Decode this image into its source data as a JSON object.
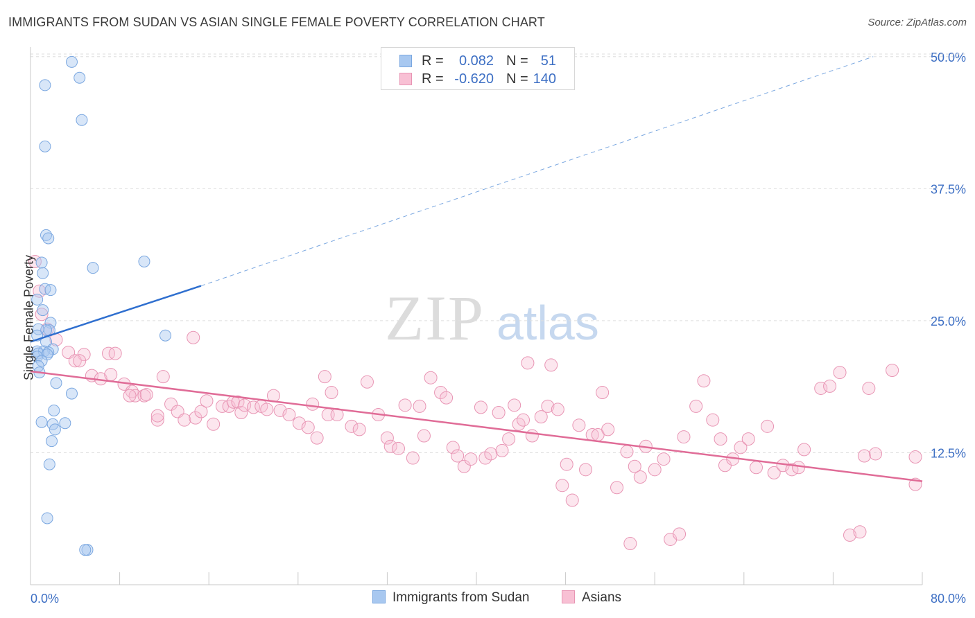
{
  "title": "IMMIGRANTS FROM SUDAN VS ASIAN SINGLE FEMALE POVERTY CORRELATION CHART",
  "source": "Source: ZipAtlas.com",
  "watermark": {
    "zip": "ZIP",
    "atlas": "atlas"
  },
  "legend_top": {
    "rows": [
      {
        "r_label": "R =",
        "r_value": "0.082",
        "n_label": "N =",
        "n_value": "51",
        "color": "#a8c8f0",
        "border": "#7aa7e0"
      },
      {
        "r_label": "R =",
        "r_value": "-0.620",
        "n_label": "N =",
        "n_value": "140",
        "color": "#f8c0d4",
        "border": "#e895b4"
      }
    ]
  },
  "legend_bottom": [
    {
      "label": "Immigrants from Sudan",
      "color": "#a8c8f0",
      "border": "#7aa7e0"
    },
    {
      "label": "Asians",
      "color": "#f8c0d4",
      "border": "#e895b4"
    }
  ],
  "chart_data": {
    "type": "scatter",
    "xlabel": "",
    "ylabel": "Single Female Poverty",
    "xlim": [
      0,
      80
    ],
    "ylim": [
      0,
      52
    ],
    "x_tick_labels": [
      "0.0%",
      "80.0%"
    ],
    "y_ticks": [
      12.5,
      25.0,
      37.5,
      50.0
    ],
    "y_tick_labels": [
      "12.5%",
      "25.0%",
      "37.5%",
      "50.0%"
    ],
    "grid": true,
    "colors": {
      "sudan": "#7aa7e0",
      "sudan_fill": "rgba(168,200,240,0.45)",
      "sudan_line": "#2f6fcf",
      "asians": "#e895b4",
      "asians_fill": "rgba(248,192,212,0.40)",
      "asians_line": "#e06c97"
    },
    "series": [
      {
        "name": "Immigrants from Sudan",
        "points": [
          [
            3.7,
            49.5
          ],
          [
            4.4,
            48.0
          ],
          [
            1.3,
            47.3
          ],
          [
            4.6,
            44.0
          ],
          [
            1.3,
            41.5
          ],
          [
            1.4,
            33.1
          ],
          [
            1.6,
            32.8
          ],
          [
            5.6,
            30.0
          ],
          [
            10.2,
            30.6
          ],
          [
            1.0,
            30.5
          ],
          [
            1.1,
            29.5
          ],
          [
            1.3,
            28.0
          ],
          [
            1.8,
            27.9
          ],
          [
            0.6,
            27.0
          ],
          [
            1.1,
            26.0
          ],
          [
            1.8,
            24.8
          ],
          [
            1.7,
            24.1
          ],
          [
            1.4,
            24.1
          ],
          [
            0.7,
            24.2
          ],
          [
            0.6,
            23.6
          ],
          [
            12.1,
            23.6
          ],
          [
            1.4,
            23.0
          ],
          [
            2.0,
            22.3
          ],
          [
            0.6,
            22.1
          ],
          [
            1.2,
            22.1
          ],
          [
            1.6,
            22.0
          ],
          [
            0.7,
            21.9
          ],
          [
            1.5,
            21.8
          ],
          [
            0.6,
            21.6
          ],
          [
            1.0,
            21.2
          ],
          [
            0.7,
            20.7
          ],
          [
            0.8,
            20.1
          ],
          [
            2.3,
            19.1
          ],
          [
            3.7,
            18.1
          ],
          [
            2.1,
            16.5
          ],
          [
            1.0,
            15.4
          ],
          [
            2.0,
            15.2
          ],
          [
            3.1,
            15.3
          ],
          [
            2.2,
            14.7
          ],
          [
            1.9,
            13.6
          ],
          [
            1.7,
            11.4
          ],
          [
            1.5,
            6.3
          ],
          [
            5.1,
            3.3
          ],
          [
            4.9,
            3.3
          ]
        ],
        "trend": {
          "x": [
            0,
            15.3
          ],
          "y": [
            23.0,
            28.3
          ],
          "dashed_to": [
            75.6,
            50.0
          ]
        }
      },
      {
        "name": "Asians",
        "points": [
          [
            0.4,
            30.6
          ],
          [
            0.8,
            27.8
          ],
          [
            1.0,
            25.6
          ],
          [
            1.5,
            24.2
          ],
          [
            2.3,
            23.2
          ],
          [
            14.6,
            23.4
          ],
          [
            3.4,
            22.0
          ],
          [
            4.8,
            21.8
          ],
          [
            7.0,
            21.9
          ],
          [
            7.6,
            21.9
          ],
          [
            4.0,
            21.2
          ],
          [
            4.4,
            21.2
          ],
          [
            5.5,
            19.8
          ],
          [
            6.3,
            19.5
          ],
          [
            7.2,
            19.9
          ],
          [
            11.9,
            19.7
          ],
          [
            8.4,
            19.0
          ],
          [
            9.1,
            18.3
          ],
          [
            9.4,
            17.9
          ],
          [
            10.2,
            17.9
          ],
          [
            10.4,
            18.0
          ],
          [
            8.9,
            17.9
          ],
          [
            11.4,
            15.6
          ],
          [
            11.4,
            16.0
          ],
          [
            12.6,
            17.1
          ],
          [
            13.2,
            16.4
          ],
          [
            13.8,
            15.6
          ],
          [
            14.8,
            15.8
          ],
          [
            15.3,
            16.4
          ],
          [
            15.8,
            17.4
          ],
          [
            16.4,
            15.2
          ],
          [
            17.2,
            16.9
          ],
          [
            17.8,
            16.9
          ],
          [
            18.2,
            17.3
          ],
          [
            18.6,
            17.3
          ],
          [
            18.9,
            16.3
          ],
          [
            19.2,
            17.0
          ],
          [
            20.0,
            16.8
          ],
          [
            20.7,
            16.9
          ],
          [
            21.2,
            16.6
          ],
          [
            21.8,
            17.9
          ],
          [
            22.4,
            16.5
          ],
          [
            23.2,
            16.1
          ],
          [
            24.1,
            15.3
          ],
          [
            24.9,
            14.9
          ],
          [
            25.3,
            17.1
          ],
          [
            25.7,
            13.9
          ],
          [
            26.4,
            19.7
          ],
          [
            27.0,
            18.2
          ],
          [
            26.7,
            16.1
          ],
          [
            27.5,
            16.1
          ],
          [
            28.8,
            15.0
          ],
          [
            29.5,
            14.7
          ],
          [
            30.2,
            19.2
          ],
          [
            31.2,
            16.1
          ],
          [
            32.0,
            13.9
          ],
          [
            32.3,
            13.1
          ],
          [
            33.0,
            12.9
          ],
          [
            33.6,
            17.0
          ],
          [
            34.3,
            12.0
          ],
          [
            34.9,
            16.9
          ],
          [
            35.3,
            14.1
          ],
          [
            35.9,
            19.6
          ],
          [
            36.8,
            18.2
          ],
          [
            37.3,
            17.7
          ],
          [
            37.9,
            13.0
          ],
          [
            38.3,
            12.2
          ],
          [
            38.9,
            11.2
          ],
          [
            39.5,
            11.9
          ],
          [
            40.4,
            16.8
          ],
          [
            40.8,
            12.0
          ],
          [
            41.3,
            12.4
          ],
          [
            42.0,
            16.3
          ],
          [
            42.3,
            12.7
          ],
          [
            42.9,
            13.8
          ],
          [
            43.4,
            17.0
          ],
          [
            43.8,
            15.2
          ],
          [
            44.2,
            15.6
          ],
          [
            44.6,
            21.0
          ],
          [
            45.0,
            14.1
          ],
          [
            45.8,
            15.9
          ],
          [
            46.4,
            16.9
          ],
          [
            46.7,
            20.8
          ],
          [
            47.3,
            16.6
          ],
          [
            47.7,
            9.4
          ],
          [
            48.1,
            11.4
          ],
          [
            48.6,
            8.0
          ],
          [
            49.2,
            15.1
          ],
          [
            49.8,
            10.9
          ],
          [
            50.4,
            14.2
          ],
          [
            50.9,
            14.2
          ],
          [
            51.3,
            18.2
          ],
          [
            51.8,
            14.7
          ],
          [
            52.6,
            9.2
          ],
          [
            53.5,
            12.6
          ],
          [
            53.8,
            3.9
          ],
          [
            54.2,
            11.2
          ],
          [
            54.7,
            10.2
          ],
          [
            55.2,
            13.1
          ],
          [
            56.0,
            10.9
          ],
          [
            56.8,
            11.9
          ],
          [
            57.4,
            4.3
          ],
          [
            58.2,
            4.8
          ],
          [
            58.6,
            14.0
          ],
          [
            59.7,
            16.9
          ],
          [
            60.4,
            19.3
          ],
          [
            61.2,
            15.6
          ],
          [
            61.9,
            13.8
          ],
          [
            62.3,
            11.3
          ],
          [
            63.0,
            11.9
          ],
          [
            63.7,
            13.0
          ],
          [
            64.4,
            13.8
          ],
          [
            65.1,
            11.1
          ],
          [
            66.1,
            15.0
          ],
          [
            66.7,
            10.6
          ],
          [
            67.5,
            11.3
          ],
          [
            68.3,
            10.9
          ],
          [
            68.9,
            11.1
          ],
          [
            69.4,
            12.8
          ],
          [
            70.9,
            18.6
          ],
          [
            71.7,
            18.8
          ],
          [
            72.6,
            20.1
          ],
          [
            73.5,
            4.7
          ],
          [
            74.4,
            5.0
          ],
          [
            74.8,
            12.2
          ],
          [
            75.2,
            18.6
          ],
          [
            75.8,
            12.4
          ],
          [
            77.3,
            20.3
          ],
          [
            80.8,
            9.5
          ],
          [
            83.6,
            12.1
          ]
        ],
        "trend": {
          "x": [
            0,
            80
          ],
          "y": [
            20.2,
            9.8
          ]
        }
      }
    ]
  }
}
